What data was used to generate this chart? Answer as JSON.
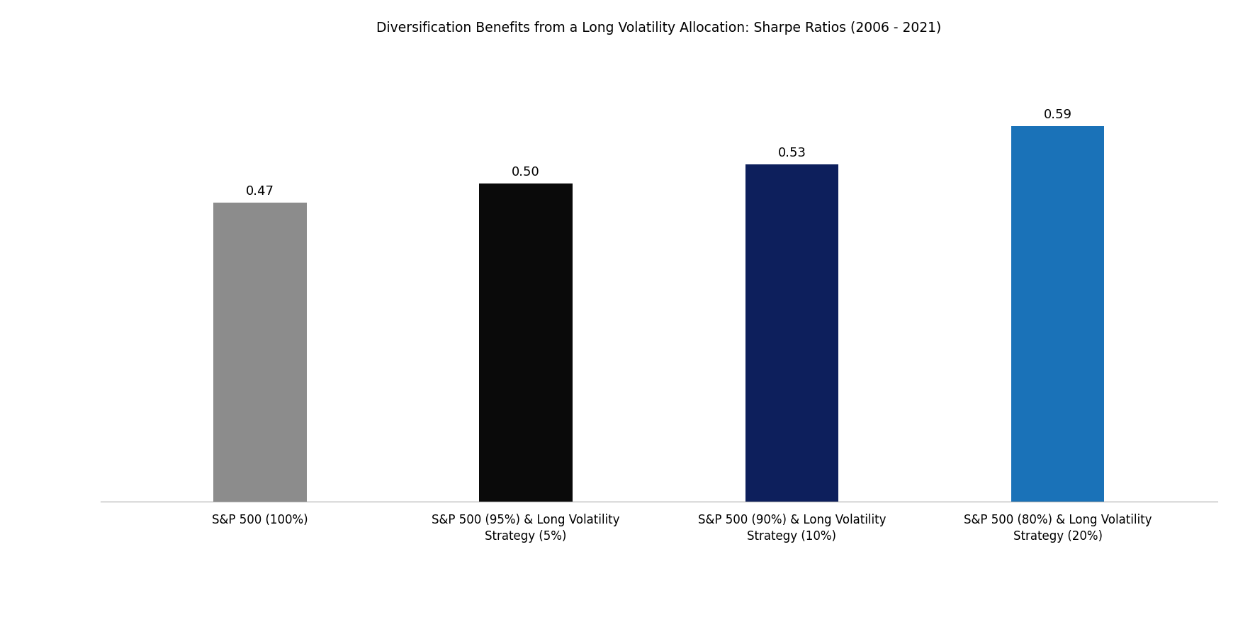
{
  "title": "Diversification Benefits from a Long Volatility Allocation: Sharpe Ratios (2006 - 2021)",
  "categories": [
    "S&P 500 (100%)",
    "S&P 500 (95%) & Long Volatility\nStrategy (5%)",
    "S&P 500 (90%) & Long Volatility\nStrategy (10%)",
    "S&P 500 (80%) & Long Volatility\nStrategy (20%)"
  ],
  "values": [
    0.47,
    0.5,
    0.53,
    0.59
  ],
  "bar_colors": [
    "#8c8c8c",
    "#0a0a0a",
    "#0d1f5c",
    "#1a72b8"
  ],
  "ylim": [
    0,
    0.7
  ],
  "title_fontsize": 13.5,
  "value_fontsize": 13,
  "tick_fontsize": 12,
  "background_color": "#ffffff",
  "bar_width": 0.35
}
